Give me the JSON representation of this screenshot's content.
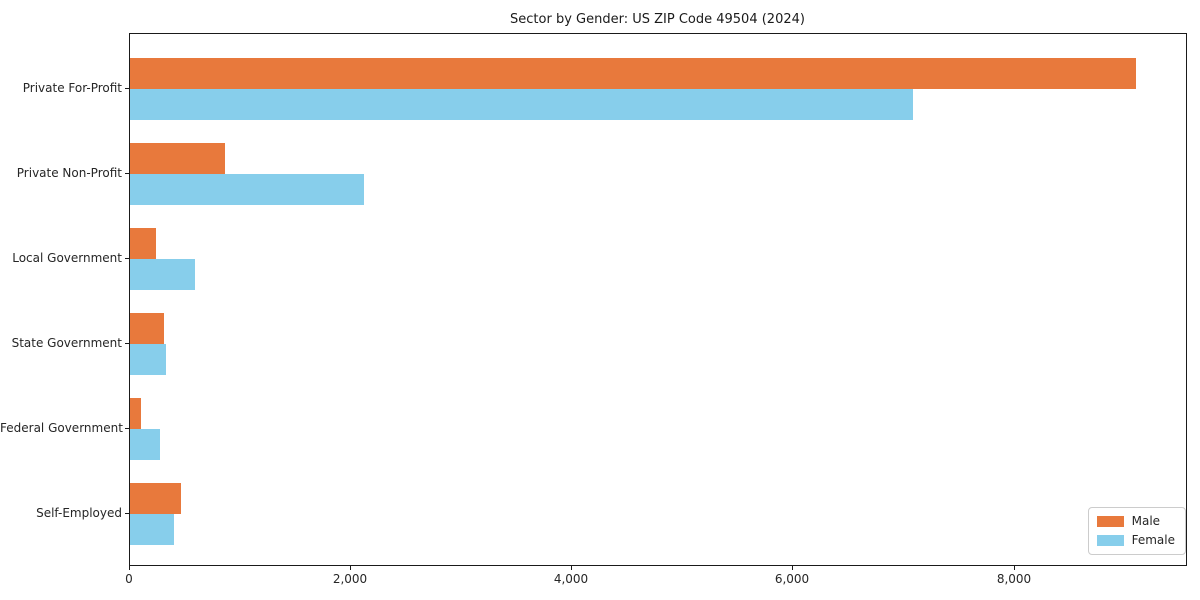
{
  "title": "Sector by Gender: US ZIP Code 49504 (2024)",
  "chart_data": {
    "type": "bar",
    "orientation": "horizontal",
    "title": "Sector by Gender: US ZIP Code 49504 (2024)",
    "categories": [
      "Private For-Profit",
      "Private Non-Profit",
      "Local Government",
      "State Government",
      "Federal Government",
      "Self-Employed"
    ],
    "series": [
      {
        "name": "Male",
        "color": "#e8793c",
        "values": [
          9100,
          860,
          235,
          310,
          100,
          465
        ]
      },
      {
        "name": "Female",
        "color": "#87ceeb",
        "values": [
          7080,
          2120,
          590,
          325,
          270,
          400
        ]
      }
    ],
    "xlabel": "",
    "ylabel": "",
    "xticks": [
      0,
      2000,
      4000,
      6000,
      8000
    ],
    "xtick_labels": [
      "0",
      "2,000",
      "4,000",
      "6,000",
      "8,000"
    ],
    "xlim": [
      0,
      9560
    ],
    "grid": false,
    "legend_position": "lower right",
    "spine_color": "#1a1a1a",
    "background_color": "#ffffff"
  }
}
